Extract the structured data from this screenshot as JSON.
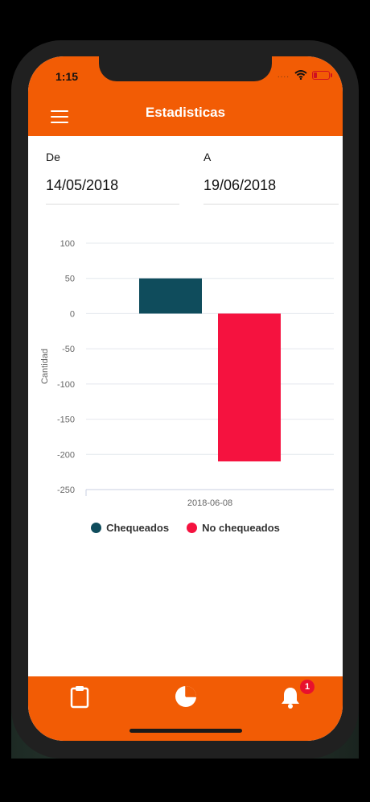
{
  "status_bar": {
    "time": "1:15",
    "signal_dots": "...."
  },
  "header": {
    "title": "Estadisticas",
    "menu_icon": "hamburger-menu-icon"
  },
  "filters": {
    "from": {
      "label": "De",
      "value": "14/05/2018"
    },
    "to": {
      "label": "A",
      "value": "19/06/2018"
    }
  },
  "chart_data": {
    "type": "bar",
    "categories": [
      "2018-06-08"
    ],
    "series": [
      {
        "name": "Chequeados",
        "color": "#0f4c5c",
        "values": [
          50
        ]
      },
      {
        "name": "No chequeados",
        "color": "#f5123f",
        "values": [
          -210
        ]
      }
    ],
    "ylabel": "Cantidad",
    "ylim": [
      -250,
      100
    ],
    "yticks": [
      100,
      50,
      0,
      -50,
      -100,
      -150,
      -200,
      -250
    ],
    "grid": true,
    "legend_position": "bottom"
  },
  "tabbar": {
    "items": [
      {
        "icon": "clipboard-icon"
      },
      {
        "icon": "pie-chart-icon"
      },
      {
        "icon": "bell-icon",
        "badge": "1"
      }
    ]
  },
  "colors": {
    "accent": "#f25c05"
  }
}
